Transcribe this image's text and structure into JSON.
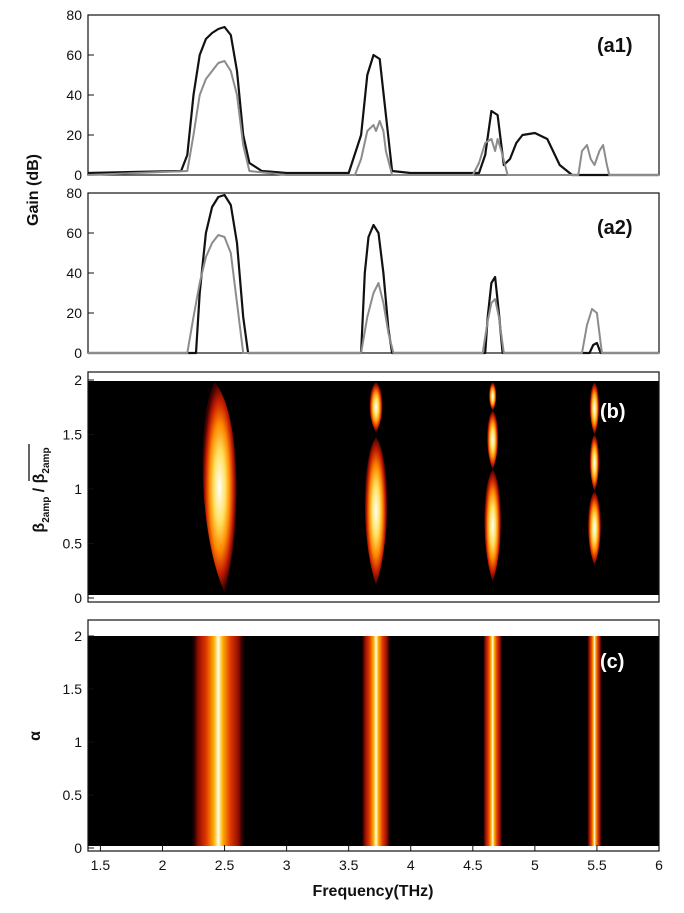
{
  "chart_data": [
    {
      "id": "a1",
      "type": "line",
      "panel_label": "(a1)",
      "ylabel": "Gain (dB)",
      "xlim": [
        1.4,
        6.0
      ],
      "ylim": [
        0,
        80
      ],
      "yticks": [
        0,
        20,
        40,
        60,
        80
      ],
      "series": [
        {
          "color": "#111111",
          "x": [
            1.4,
            2.15,
            2.2,
            2.25,
            2.3,
            2.35,
            2.4,
            2.45,
            2.5,
            2.55,
            2.6,
            2.65,
            2.7,
            2.8,
            3.0,
            3.5,
            3.6,
            3.65,
            3.7,
            3.75,
            3.8,
            3.85,
            4.0,
            4.55,
            4.6,
            4.65,
            4.7,
            4.75,
            4.8,
            4.85,
            4.9,
            5.0,
            5.1,
            5.2,
            5.3,
            6.0
          ],
          "y": [
            1,
            2,
            10,
            40,
            60,
            68,
            71,
            73,
            74,
            70,
            52,
            20,
            6,
            2,
            1,
            1,
            20,
            50,
            60,
            58,
            30,
            2,
            1,
            1,
            10,
            32,
            30,
            5,
            8,
            16,
            20,
            21,
            18,
            5,
            0,
            0
          ]
        },
        {
          "color": "#8c8c8c",
          "x": [
            1.4,
            2.2,
            2.25,
            2.3,
            2.35,
            2.4,
            2.45,
            2.5,
            2.55,
            2.6,
            2.65,
            2.7,
            3.0,
            3.55,
            3.6,
            3.65,
            3.7,
            3.72,
            3.75,
            3.78,
            3.8,
            3.85,
            4.5,
            4.55,
            4.6,
            4.65,
            4.68,
            4.7,
            4.73,
            4.78,
            5.35,
            5.38,
            5.42,
            5.45,
            5.48,
            5.52,
            5.55,
            5.58,
            5.6,
            6.0
          ],
          "y": [
            0,
            2,
            20,
            40,
            48,
            52,
            56,
            57,
            52,
            40,
            15,
            2,
            0,
            0,
            8,
            22,
            25,
            22,
            27,
            22,
            12,
            0,
            0,
            6,
            16,
            18,
            12,
            18,
            12,
            0,
            0,
            12,
            15,
            8,
            5,
            12,
            15,
            5,
            0,
            0
          ]
        }
      ]
    },
    {
      "id": "a2",
      "type": "line",
      "panel_label": "(a2)",
      "xlim": [
        1.4,
        6.0
      ],
      "ylim": [
        0,
        80
      ],
      "yticks": [
        0,
        20,
        40,
        60,
        80
      ],
      "series": [
        {
          "color": "#111111",
          "x": [
            1.4,
            2.27,
            2.3,
            2.35,
            2.4,
            2.45,
            2.5,
            2.55,
            2.6,
            2.65,
            2.69,
            3.6,
            3.63,
            3.66,
            3.7,
            3.74,
            3.78,
            3.82,
            3.85,
            4.6,
            4.62,
            4.65,
            4.68,
            4.71,
            4.74,
            5.44,
            5.47,
            5.5,
            5.53,
            6.0
          ],
          "y": [
            0,
            0,
            30,
            60,
            73,
            78,
            79,
            74,
            55,
            18,
            0,
            0,
            40,
            58,
            64,
            60,
            40,
            12,
            0,
            0,
            18,
            35,
            38,
            20,
            0,
            0,
            4,
            5,
            0,
            0
          ]
        },
        {
          "color": "#8c8c8c",
          "x": [
            1.4,
            2.2,
            2.25,
            2.3,
            2.35,
            2.4,
            2.45,
            2.5,
            2.55,
            2.6,
            2.65,
            3.6,
            3.65,
            3.7,
            3.74,
            3.78,
            3.82,
            3.86,
            4.58,
            4.62,
            4.65,
            4.68,
            4.71,
            4.75,
            5.38,
            5.42,
            5.46,
            5.5,
            5.54,
            6.0
          ],
          "y": [
            0,
            0,
            18,
            35,
            48,
            55,
            59,
            58,
            50,
            25,
            0,
            0,
            18,
            30,
            35,
            25,
            10,
            0,
            0,
            16,
            25,
            27,
            18,
            0,
            0,
            14,
            22,
            20,
            0,
            0
          ]
        }
      ]
    },
    {
      "id": "b",
      "type": "heatmap",
      "panel_label": "(b)",
      "ylabel_main": "β",
      "ylabel_sub": "2amp",
      "ylabel_sep": " / ",
      "ylabel_bar_main": "β",
      "ylabel_bar_sub": "2amp",
      "xlim": [
        1.4,
        6.0
      ],
      "ylim": [
        0,
        2
      ],
      "yticks": [
        0,
        0.5,
        1,
        1.5,
        2
      ],
      "ytick_labels": [
        "0",
        "0.5",
        "1",
        "1.5",
        "2"
      ],
      "lobes": [
        {
          "x_top": 2.42,
          "x_bottom": 2.5,
          "y_top": 1.98,
          "y_bottom": 0.05,
          "half_width": 0.18
        },
        {
          "x_top": 3.72,
          "x_bottom": 3.72,
          "y_top": 1.98,
          "y_bottom": 1.52,
          "half_width": 0.07
        },
        {
          "x_top": 3.72,
          "x_bottom": 3.72,
          "y_top": 1.48,
          "y_bottom": 0.12,
          "half_width": 0.12
        },
        {
          "x_top": 4.66,
          "x_bottom": 4.66,
          "y_top": 1.98,
          "y_bottom": 1.72,
          "half_width": 0.04
        },
        {
          "x_top": 4.66,
          "x_bottom": 4.66,
          "y_top": 1.72,
          "y_bottom": 1.18,
          "half_width": 0.06
        },
        {
          "x_top": 4.66,
          "x_bottom": 4.66,
          "y_top": 1.18,
          "y_bottom": 0.15,
          "half_width": 0.09
        },
        {
          "x_top": 5.48,
          "x_bottom": 5.48,
          "y_top": 1.98,
          "y_bottom": 1.5,
          "half_width": 0.05
        },
        {
          "x_top": 5.48,
          "x_bottom": 5.48,
          "y_top": 1.5,
          "y_bottom": 0.98,
          "half_width": 0.05
        },
        {
          "x_top": 5.48,
          "x_bottom": 5.48,
          "y_top": 0.98,
          "y_bottom": 0.3,
          "half_width": 0.07
        }
      ]
    },
    {
      "id": "c",
      "type": "heatmap",
      "panel_label": "(c)",
      "ylabel": "α",
      "xlabel": "Frequency(THz)",
      "xlim": [
        1.4,
        6.0
      ],
      "ylim": [
        0,
        2
      ],
      "yticks": [
        0,
        0.5,
        1,
        1.5,
        2
      ],
      "ytick_labels": [
        "0",
        "0.5",
        "1",
        "1.5",
        "2"
      ],
      "xticks": [
        1.5,
        2,
        2.5,
        3,
        3.5,
        4,
        4.5,
        5,
        5.5,
        6
      ],
      "xtick_labels": [
        "1.5",
        "2",
        "2.5",
        "3",
        "3.5",
        "4",
        "4.5",
        "5",
        "5.5",
        "6"
      ],
      "bands": [
        {
          "center": 2.45,
          "half_width": 0.22
        },
        {
          "center": 3.72,
          "half_width": 0.12
        },
        {
          "center": 4.66,
          "half_width": 0.08
        },
        {
          "center": 5.48,
          "half_width": 0.06
        }
      ]
    }
  ]
}
